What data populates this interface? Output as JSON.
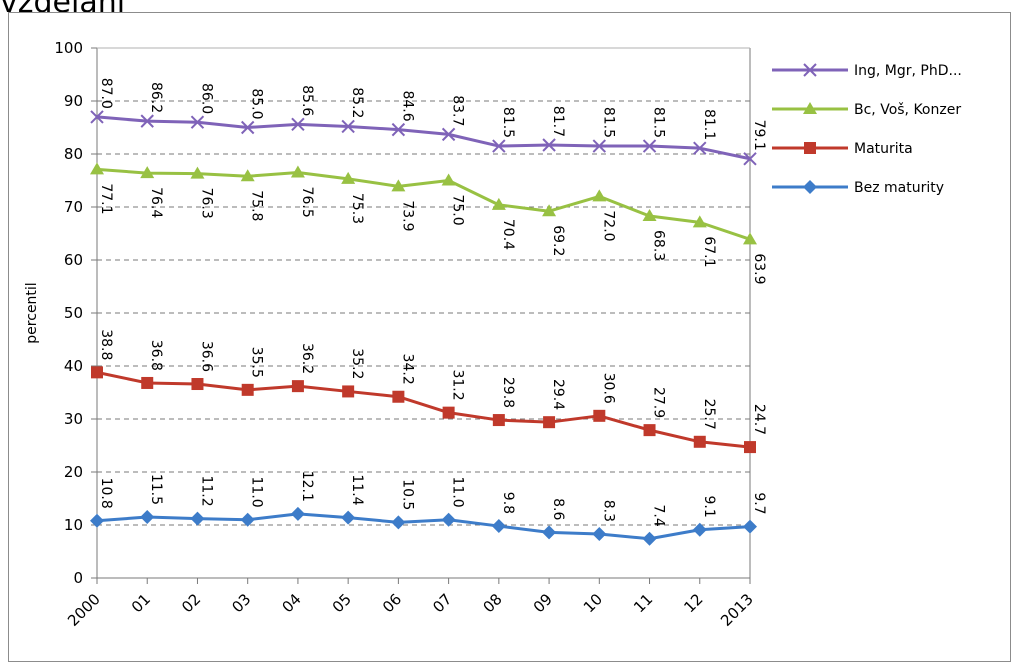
{
  "title": "vzdělání",
  "chart_data": {
    "type": "line",
    "ylabel": "percentil",
    "ylim": [
      0,
      100
    ],
    "ystep": 10,
    "grid": true,
    "legend_position": "right",
    "categories": [
      "2000",
      "01",
      "02",
      "03",
      "04",
      "05",
      "06",
      "07",
      "08",
      "09",
      "10",
      "11",
      "12",
      "2013"
    ],
    "series": [
      {
        "name": "Ing, Mgr, PhD...",
        "color": "#7f63b8",
        "marker": "x",
        "values": [
          87.0,
          86.2,
          86.0,
          85.0,
          85.6,
          85.2,
          84.6,
          83.7,
          81.5,
          81.7,
          81.5,
          81.5,
          81.1,
          79.1
        ],
        "labels": [
          "87.0",
          "86.2",
          "86.0",
          "85.0",
          "85.6",
          "85.2",
          "84.6",
          "83.7",
          "81.5",
          "81.7",
          "81.5",
          "81.5",
          "81.1",
          "79.1"
        ]
      },
      {
        "name": "Bc, Voš, Konzer",
        "color": "#98c143",
        "marker": "triangle",
        "values": [
          77.1,
          76.4,
          76.3,
          75.8,
          76.5,
          75.3,
          73.9,
          75.0,
          70.4,
          69.2,
          72.0,
          68.3,
          67.1,
          63.9
        ],
        "labels": [
          "77.1",
          "76.4",
          "76.3",
          "75.8",
          "76.5",
          "75.3",
          "73.9",
          "75.0",
          "70.4",
          "69.2",
          "72.0",
          "68.3",
          "67.1",
          "63.9"
        ]
      },
      {
        "name": "Maturita",
        "color": "#c0392b",
        "marker": "square",
        "values": [
          38.8,
          36.8,
          36.6,
          35.5,
          36.2,
          35.2,
          34.2,
          31.2,
          29.8,
          29.4,
          30.6,
          27.9,
          25.7,
          24.7
        ],
        "labels": [
          "38.8",
          "36.8",
          "36.6",
          "35.5",
          "36.2",
          "35.2",
          "34.2",
          "31.2",
          "29.8",
          "29.4",
          "30.6",
          "27.9",
          "25.7",
          "24.7"
        ]
      },
      {
        "name": "Bez maturity",
        "color": "#3d7cc9",
        "marker": "diamond",
        "values": [
          10.8,
          11.5,
          11.2,
          11.0,
          12.1,
          11.4,
          10.5,
          11.0,
          9.8,
          8.6,
          8.3,
          7.4,
          9.1,
          9.7
        ],
        "labels": [
          "10.8",
          "11.5",
          "11.2",
          "11.0",
          "12.1",
          "11.4",
          "10.5",
          "11.0",
          "9.8",
          "8.6",
          "8.3",
          "7.4",
          "9.1",
          "9.7"
        ]
      }
    ]
  }
}
